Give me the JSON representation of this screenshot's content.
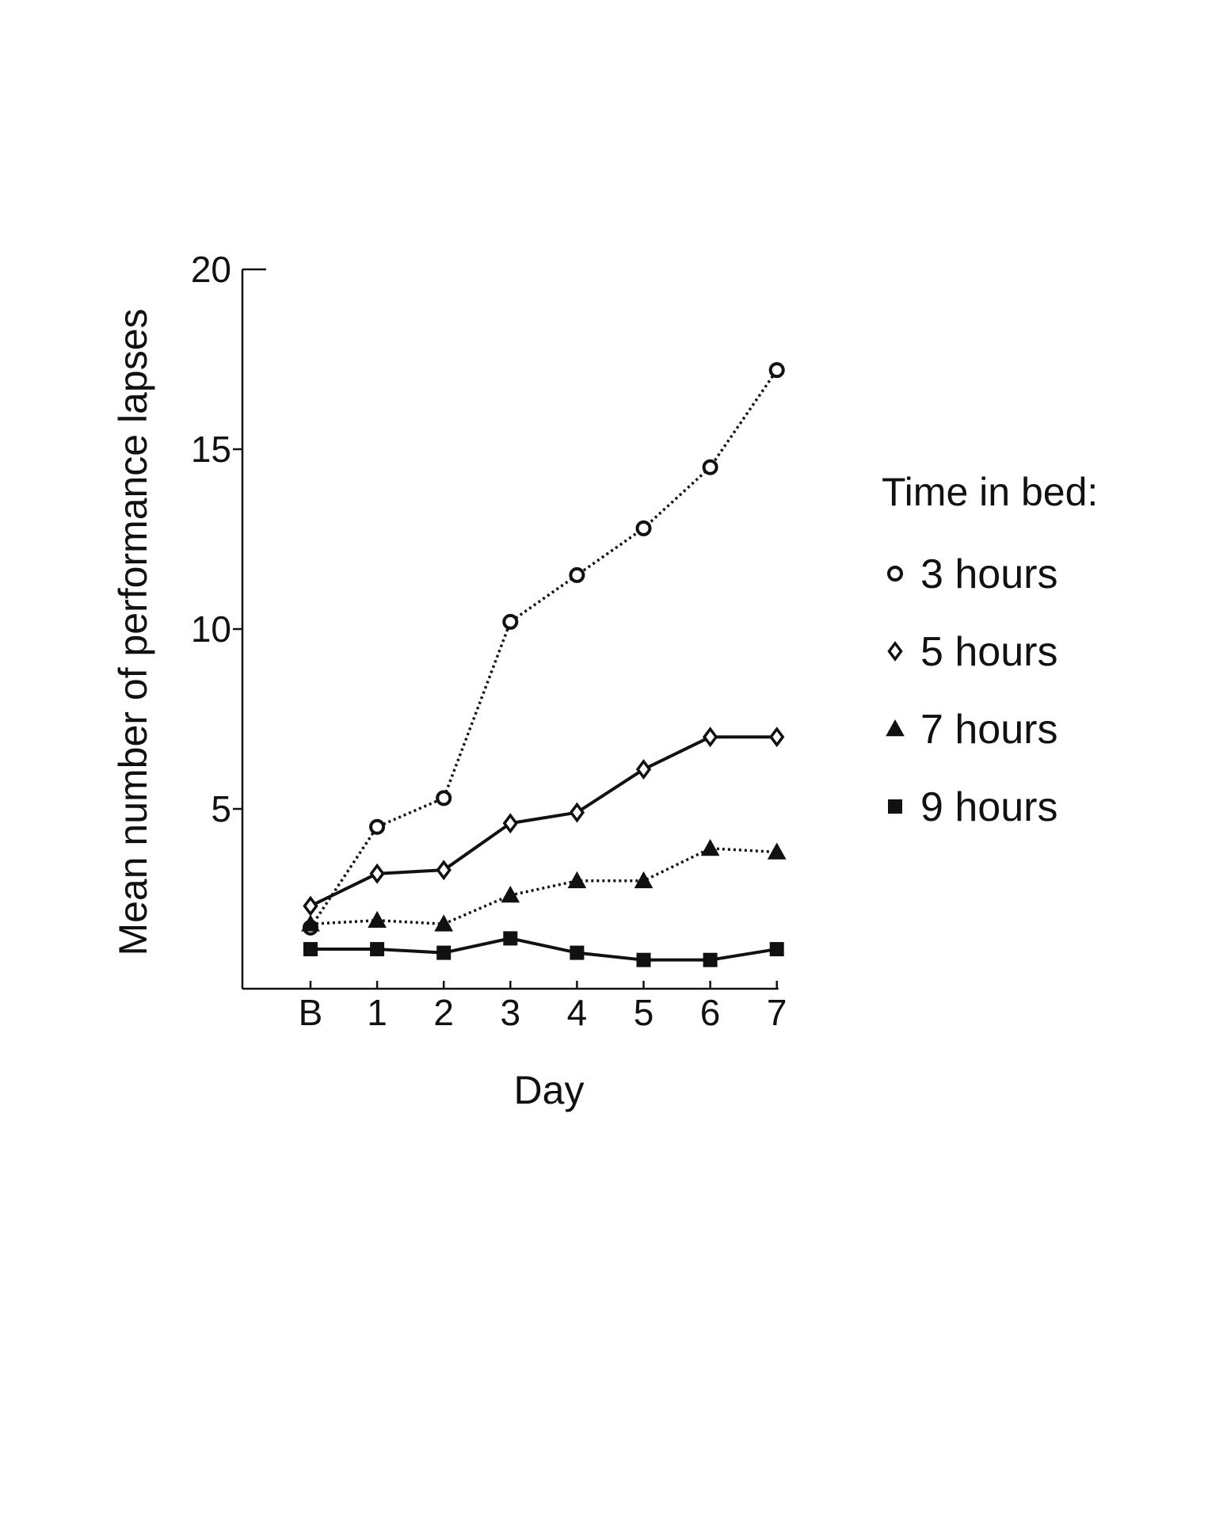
{
  "chart_data": {
    "type": "line",
    "title": "",
    "xlabel": "Day",
    "ylabel": "Mean number of performance lapses",
    "categories": [
      "B",
      "1",
      "2",
      "3",
      "4",
      "5",
      "6",
      "7"
    ],
    "ylim": [
      0,
      20
    ],
    "yticks": [
      5,
      10,
      15,
      20
    ],
    "grid": false,
    "legend_title": "Time in bed:",
    "legend_position": "right",
    "series": [
      {
        "name": "3 hours",
        "marker": "circle",
        "line": "dotted",
        "values": [
          1.7,
          4.5,
          5.3,
          10.2,
          11.5,
          12.8,
          14.5,
          17.2
        ]
      },
      {
        "name": "5 hours",
        "marker": "diamond",
        "line": "solid",
        "values": [
          2.3,
          3.2,
          3.3,
          4.6,
          4.9,
          6.1,
          7.0,
          7.0
        ]
      },
      {
        "name": "7 hours",
        "marker": "triangle",
        "line": "dotted",
        "values": [
          1.8,
          1.9,
          1.8,
          2.6,
          3.0,
          3.0,
          3.9,
          3.8
        ]
      },
      {
        "name": "9 hours",
        "marker": "square",
        "line": "solid",
        "values": [
          1.1,
          1.1,
          1.0,
          1.4,
          1.0,
          0.8,
          0.8,
          1.1
        ]
      }
    ],
    "colors": {
      "ink": "#111111",
      "background": "#ffffff"
    }
  }
}
